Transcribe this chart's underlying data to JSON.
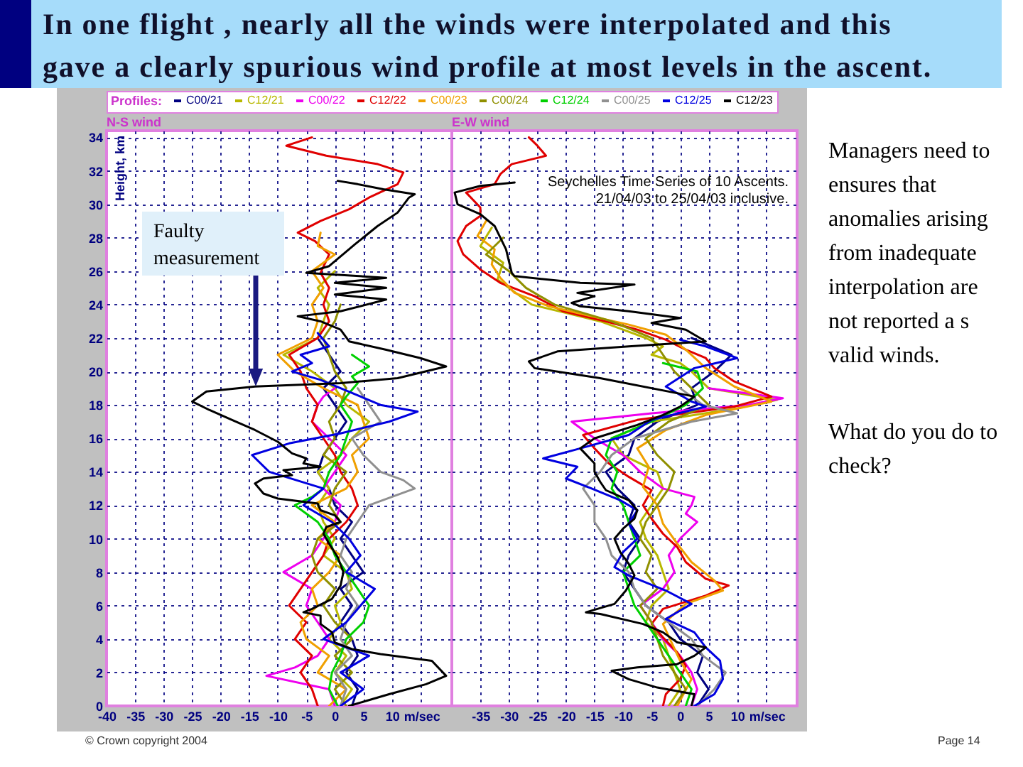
{
  "chart_data": [
    {
      "type": "line",
      "title": "N-S wind",
      "xlabel": "m/sec",
      "ylabel": "Height, km",
      "legend": "top",
      "legend_title": "Profiles:",
      "grid": true,
      "xlim": [
        -40,
        20.5
      ],
      "ylim": [
        0,
        34.4
      ],
      "xticks": [
        -40,
        -35,
        -30,
        -25,
        -20,
        -15,
        -10,
        -5,
        0,
        5,
        10,
        {
          "value": 15,
          "label": null
        }
      ],
      "yticks": [
        0,
        2,
        4,
        6,
        8,
        10,
        12,
        14,
        16,
        18,
        20,
        22,
        24,
        26,
        28,
        30,
        32,
        34
      ],
      "series": [
        {
          "name": "C00/21",
          "color": "#000080",
          "x": [
            3,
            4,
            2,
            4,
            3,
            1,
            3,
            1,
            5,
            3,
            1,
            3,
            0,
            -1,
            -3,
            -2,
            0,
            2,
            0,
            -2,
            1,
            -1,
            -3
          ],
          "values": [
            0,
            1,
            2,
            3,
            4,
            5,
            6,
            7,
            8,
            9,
            10,
            11,
            12,
            13,
            14,
            15,
            16,
            17,
            18,
            19,
            20,
            21,
            22
          ]
        },
        {
          "name": "C12/21",
          "color": "#b8b800",
          "x": [
            1,
            3,
            0,
            2,
            -1,
            1,
            0,
            3,
            2,
            -2,
            0,
            -2,
            -3,
            -1,
            -3,
            1,
            3,
            6,
            2,
            0,
            -4,
            -9,
            -3,
            -2,
            -1,
            -3,
            0
          ],
          "values": [
            0,
            1,
            2,
            3,
            4,
            5,
            6,
            7,
            8,
            9,
            10,
            11,
            12,
            13,
            14,
            15,
            16,
            17,
            18,
            19,
            20,
            21,
            22,
            23,
            24,
            25,
            26
          ]
        },
        {
          "name": "C00/22",
          "color": "#ee00ee",
          "x": [
            0,
            -1,
            -12,
            -7,
            -3,
            -1,
            -3,
            -5,
            -4,
            -9,
            -6,
            -4,
            -2,
            0,
            1,
            -2,
            0,
            2,
            -1,
            -4,
            -3,
            -2,
            0
          ],
          "values": [
            0,
            1,
            1.8,
            2.3,
            3,
            4,
            5,
            6,
            7,
            8,
            8.6,
            9,
            10,
            11,
            12,
            13,
            14,
            15,
            16,
            17,
            18,
            18.5,
            19
          ]
        },
        {
          "name": "C12/22",
          "color": "#e00000",
          "x": [
            -3,
            -4,
            -6,
            -4,
            -7,
            -5,
            -8,
            -6,
            -4,
            -2,
            -1,
            2,
            4,
            3,
            1,
            0,
            -2,
            -4,
            -3,
            -5,
            -6,
            -8,
            -3,
            -1,
            -2,
            -1,
            -2.5,
            -1,
            -3.5,
            -6.5,
            -2.5,
            2.5,
            6,
            11,
            12,
            7.5,
            -1.5,
            -8.5,
            -4
          ],
          "values": [
            0,
            1,
            2,
            3,
            4,
            5,
            6,
            7,
            8,
            9,
            10,
            11,
            12,
            13,
            14,
            15,
            16,
            17,
            18,
            19,
            20,
            21,
            22,
            23,
            24,
            25,
            25.9,
            27,
            27.8,
            28.3,
            29,
            29.7,
            30.4,
            31.2,
            31.9,
            32.4,
            32.9,
            33.5,
            34
          ]
        },
        {
          "name": "C00/23",
          "color": "#f0a000",
          "x": [
            -1,
            2,
            -3,
            -1,
            -5,
            -6,
            -3,
            -4,
            -1,
            1,
            -3,
            0,
            -4,
            2,
            4,
            3,
            6,
            5,
            4,
            -2,
            -7,
            -10,
            -4,
            -3,
            -4,
            -2,
            -4,
            0,
            -3,
            -2.5
          ],
          "values": [
            0,
            1,
            2,
            3,
            4,
            5,
            6,
            7,
            8,
            9,
            10,
            11,
            12,
            13,
            14,
            15,
            16,
            17,
            18,
            19,
            20,
            21,
            22,
            23,
            24,
            25,
            26,
            27,
            27.5,
            28.3
          ]
        },
        {
          "name": "C00/24",
          "color": "#909000",
          "x": [
            2,
            0,
            3,
            0,
            3,
            0,
            -2,
            0,
            -3,
            -4,
            -3,
            1,
            -1,
            0,
            2,
            -2,
            0,
            -1,
            1,
            2,
            0,
            -1,
            -2,
            0,
            1
          ],
          "values": [
            0,
            1,
            2,
            3,
            4,
            5,
            6,
            7,
            8,
            9,
            10,
            11,
            12,
            13,
            14,
            15,
            16,
            17,
            18,
            19,
            20,
            21,
            22,
            23,
            24
          ]
        },
        {
          "name": "C12/24",
          "color": "#00d000",
          "x": [
            0.5,
            -1,
            -0.5,
            1,
            2,
            5,
            6,
            4,
            2,
            0,
            -1,
            -3,
            -7,
            -4,
            -2,
            -1,
            1,
            2,
            3,
            1,
            2,
            4,
            3,
            6,
            3
          ],
          "values": [
            0,
            1,
            2,
            3,
            4,
            5,
            6,
            7,
            8,
            9,
            10,
            11,
            12,
            12.5,
            13,
            14,
            15,
            16,
            17,
            18,
            18.5,
            19.3,
            19.7,
            20.3,
            21
          ]
        },
        {
          "name": "C00/25",
          "color": "#909090",
          "x": [
            1,
            2,
            0,
            3,
            1,
            2,
            4,
            2,
            3,
            1,
            2,
            4,
            6,
            10,
            14,
            12,
            8,
            5,
            3,
            8,
            6,
            4
          ],
          "values": [
            0,
            1,
            2,
            3,
            4,
            5,
            6,
            7,
            8,
            9,
            10,
            11,
            12,
            12.5,
            13,
            13.5,
            14,
            15,
            16,
            17,
            18,
            19
          ]
        },
        {
          "name": "C12/25",
          "color": "#0000e0",
          "x": [
            1,
            5,
            1,
            6,
            -2,
            2,
            4.5,
            7,
            2,
            4.5,
            2.5,
            -0.5,
            -5.5,
            -2,
            -11.5,
            -14.5,
            -8,
            1,
            9.5,
            14.5,
            8,
            -2.5,
            -7.5,
            -4,
            -6,
            -1,
            -3
          ],
          "values": [
            0,
            1,
            2,
            3,
            4,
            5,
            6,
            7,
            8,
            9,
            10,
            11,
            12,
            13,
            14,
            15,
            15.7,
            16.3,
            17,
            17.6,
            18,
            19.5,
            20,
            20.5,
            21,
            21.5,
            22.3
          ]
        },
        {
          "name": "C12/23",
          "color": "#000000",
          "x": [
            2.5,
            9.5,
            16,
            19.5,
            17,
            8,
            3,
            0,
            -0.5,
            -2.5,
            -2.5,
            -5.5,
            -4,
            -0.5,
            1,
            1.5,
            0.5,
            -1,
            -2,
            -1.5,
            1,
            0,
            -2.5,
            -3,
            -10,
            -12.5,
            -14,
            -12.5,
            -7.5,
            -9,
            -2.5,
            -5.5,
            -5,
            -7.5,
            -10,
            -14,
            -18,
            -22,
            -25,
            -22.5,
            -14,
            1,
            11,
            19.5,
            15,
            9,
            2.5,
            1,
            -2.5,
            -6.5,
            1,
            9,
            0,
            9,
            0,
            9,
            -5,
            -1,
            3.5,
            7.5,
            11,
            13,
            14,
            8.5,
            4,
            0.5
          ],
          "values": [
            0,
            0.7,
            1.3,
            1.8,
            2.7,
            3.1,
            3.4,
            3.8,
            4.4,
            4.9,
            5.4,
            5.6,
            5.8,
            6.4,
            7.2,
            8,
            8.9,
            9.7,
            10.3,
            10.7,
            11,
            11.4,
            11.7,
            12.1,
            12.4,
            12.7,
            13.3,
            13.6,
            13.8,
            14.1,
            14.3,
            14.5,
            14.8,
            15.1,
            15.8,
            16.5,
            17.1,
            17.7,
            18.2,
            18.8,
            19.1,
            19.3,
            19.6,
            20.3,
            20.8,
            21.3,
            21.8,
            22.5,
            23,
            23.3,
            23.6,
            24.3,
            24.6,
            25,
            25.3,
            25.6,
            25.9,
            26.3,
            27.6,
            28.7,
            29.5,
            30.4,
            30.6,
            30.9,
            31.2,
            31.4
          ]
        }
      ],
      "annotations": [
        "In one flight , nearly all the winds were interpolated and this gave a clearly spurious wind profile at most levels in the ascent.",
        "Faulty measurement",
        "Managers need to ensures that anomalies arising from inadequate interpolation are not reported a s valid winds.",
        "What do you do to check?",
        "© Crown copyright 2004",
        "Page 14"
      ]
    },
    {
      "type": "line",
      "title": "E-W wind",
      "xlabel": "m/sec",
      "legend": "top",
      "grid": true,
      "tick_labels": "x",
      "xlim": [
        -40,
        20.5
      ],
      "ylim": [
        0,
        34.4
      ],
      "xticks": [
        -35,
        -30,
        -25,
        -20,
        -15,
        -10,
        -5,
        0,
        5,
        10,
        {
          "value": 15,
          "label": null
        }
      ],
      "yticks": [
        0,
        2,
        4,
        6,
        8,
        10,
        12,
        14,
        16,
        18,
        20,
        22,
        24,
        26,
        28,
        30,
        32,
        34
      ],
      "series": [
        {
          "name": "C00/21",
          "color": "#000080",
          "x": [
            3,
            5,
            3,
            4,
            0,
            -2,
            -6,
            -8,
            -10,
            -9,
            -7,
            -9,
            -8,
            -11,
            -13,
            -9,
            -8,
            -4,
            3,
            2,
            6,
            9,
            2
          ],
          "values": [
            0,
            1,
            2,
            3,
            4,
            5,
            6,
            7,
            8,
            9,
            10,
            11,
            12,
            13,
            14,
            15,
            16,
            17,
            18,
            19,
            20,
            21,
            22
          ]
        },
        {
          "name": "C12/21",
          "color": "#b8b800",
          "x": [
            -2,
            0,
            -1,
            -2,
            -3,
            -6,
            -5,
            -2,
            -3,
            -4,
            -6,
            -7,
            -5,
            -3,
            -4,
            -10,
            -12,
            -5,
            10,
            17,
            5,
            2,
            0,
            -5,
            -3,
            -6,
            -10,
            -14,
            -20,
            -26,
            -28,
            -32,
            -31,
            -35,
            -33
          ],
          "values": [
            0,
            1,
            2,
            3,
            4,
            5,
            6,
            7,
            8,
            9,
            10,
            11,
            12,
            13,
            14,
            15,
            16,
            17,
            17.8,
            18.3,
            19,
            20,
            20.5,
            21,
            21.5,
            22,
            22.5,
            23,
            23.5,
            24,
            24.5,
            25.5,
            26.5,
            27.5,
            28.6
          ]
        },
        {
          "name": "C00/22",
          "color": "#ee00ee",
          "x": [
            2,
            3,
            2,
            0,
            -3,
            -5,
            -7,
            -3,
            -1,
            -2,
            0,
            3,
            1,
            2,
            2.5,
            -3,
            -7,
            -10,
            -15,
            -19,
            -5,
            12,
            18,
            5
          ],
          "values": [
            0,
            1,
            2,
            3,
            4,
            5,
            6,
            7,
            8,
            9,
            10,
            11,
            11.5,
            12,
            12.5,
            13,
            14,
            15,
            16,
            17,
            17.5,
            18,
            18.4,
            19
          ]
        },
        {
          "name": "C12/22",
          "color": "#e00000",
          "x": [
            -3,
            -2.5,
            0,
            1,
            -0.5,
            -3,
            -5,
            -3,
            4.5,
            8.5,
            4.5,
            1,
            -0.5,
            -3,
            -5,
            -6.5,
            -5,
            -9,
            -12.5,
            -15,
            -17,
            -7.5,
            9.5,
            16,
            9.5,
            6,
            4.5,
            1,
            -2.5,
            -7.5,
            -13,
            -20.5,
            -25.5,
            -31.5,
            -35,
            -38,
            -39,
            -37.5,
            -35,
            -35,
            -37.5,
            -32.5,
            -31.5,
            -29.5,
            -23.5,
            -25,
            -26.5
          ],
          "values": [
            0,
            0.7,
            1.6,
            2.4,
            3.2,
            4.1,
            4.9,
            5.8,
            6.6,
            7.2,
            7.6,
            8.6,
            9.5,
            10.3,
            11.2,
            12,
            12.9,
            13.7,
            14.5,
            15.4,
            16.2,
            17.1,
            17.9,
            18.5,
            19.4,
            20.2,
            20.8,
            21.3,
            21.9,
            22.5,
            23,
            23.6,
            24.5,
            25.3,
            26.1,
            27,
            27.8,
            28.7,
            29.3,
            29.8,
            30.7,
            31.2,
            31.8,
            32.4,
            32.9,
            33.5,
            34
          ]
        },
        {
          "name": "C00/23",
          "color": "#f0a000",
          "x": [
            -0.5,
            2,
            0,
            -1.5,
            -3,
            1,
            7.5,
            6,
            2,
            -0.5,
            -3,
            -4,
            -6.5,
            -5.5,
            -7.5,
            -2.5,
            4.5,
            16,
            9.5,
            4.5,
            1,
            -2.5,
            -9,
            -15.5,
            -23,
            -29,
            -31.5,
            -33,
            -32.5,
            -35.5,
            -34
          ],
          "values": [
            0,
            1.6,
            2.7,
            3.8,
            4.9,
            6.1,
            6.9,
            7.5,
            8.6,
            9.7,
            10.9,
            12,
            13.1,
            14.3,
            15.4,
            16.5,
            17.4,
            18.2,
            19.1,
            20.2,
            21.3,
            22.2,
            22.8,
            23.3,
            23.9,
            24.7,
            25.6,
            26.4,
            27.3,
            28.1,
            29
          ]
        },
        {
          "name": "C00/24",
          "color": "#909000",
          "x": [
            -1,
            1,
            -1,
            -3,
            -4,
            -5,
            -7,
            -4,
            -6,
            -5,
            -7,
            -6,
            -4,
            -2,
            -1,
            -4,
            -6,
            -2,
            5,
            2,
            -1,
            -3,
            -5,
            -12,
            -22,
            -27,
            -30,
            -34,
            -31
          ],
          "values": [
            0,
            1,
            2,
            3,
            4,
            5,
            6,
            7,
            8,
            9,
            10,
            11,
            12,
            13,
            14,
            15,
            16,
            17,
            18,
            19,
            20,
            21,
            22,
            23,
            24,
            25,
            26,
            27,
            28
          ]
        },
        {
          "name": "C12/24",
          "color": "#00d000",
          "x": [
            1,
            2,
            0,
            -2,
            -4,
            -6,
            -8,
            -9,
            -10,
            -7,
            -8,
            -9,
            -10,
            -12,
            -11,
            -13,
            -12,
            -5,
            1,
            4,
            3,
            -3
          ],
          "values": [
            0,
            1,
            2,
            3,
            4,
            5,
            6,
            7,
            8,
            9,
            10,
            11,
            12,
            13,
            14,
            15,
            16,
            17,
            18,
            19,
            20,
            20.5
          ]
        },
        {
          "name": "C00/25",
          "color": "#909090",
          "x": [
            3,
            6,
            8,
            4,
            2,
            -2,
            -6,
            -8,
            -9,
            -12,
            -13,
            -15,
            -15,
            -17,
            -14,
            -12,
            -8,
            2,
            10,
            4,
            0
          ],
          "values": [
            0,
            1,
            2,
            3,
            4,
            5,
            6,
            7,
            8,
            9,
            10,
            11,
            12,
            13,
            14,
            15,
            16,
            17,
            17.5,
            18,
            19
          ]
        },
        {
          "name": "C12/25",
          "color": "#0000e0",
          "x": [
            2.5,
            6,
            7.5,
            7,
            4.5,
            2.5,
            -2.5,
            2,
            -2.5,
            -9,
            -11.5,
            -10,
            -7.5,
            -9,
            -7.5,
            -10.5,
            -15.5,
            -20,
            -18,
            -24,
            -17.5,
            -9,
            -5,
            4.5,
            2,
            -2.5,
            2.5,
            10,
            4.5,
            0
          ],
          "values": [
            0,
            0.7,
            1.6,
            2.7,
            3.5,
            4.4,
            5.2,
            6.1,
            6.9,
            7.8,
            8.3,
            9.2,
            10,
            10.9,
            11.7,
            12.3,
            13,
            13.6,
            14.3,
            14.8,
            15.4,
            16.2,
            17.1,
            17.9,
            18.2,
            19.1,
            20.2,
            20.8,
            21.5,
            21.9
          ]
        },
        {
          "name": "C12/23",
          "color": "#000000",
          "x": [
            2,
            2.5,
            -4,
            -9,
            -12,
            -7.5,
            -0.5,
            2.5,
            4.5,
            -0.5,
            -3,
            -6.5,
            -14,
            -16.5,
            -11.5,
            -9.5,
            -8,
            -9,
            -10.5,
            -11.5,
            -10,
            -8,
            -7.5,
            -9,
            -13,
            -14,
            -15,
            -15,
            -17.5,
            -15,
            -7.5,
            -3,
            0,
            2.5,
            -14,
            -25.5,
            -26.5,
            -21.5,
            -9,
            4.5,
            1,
            -5,
            0,
            -9,
            -17.5,
            -19,
            -15,
            -18,
            -8,
            -17.5,
            -29,
            -29.5,
            -30.5,
            -32.5,
            -35,
            -39,
            -39.5,
            -35,
            -29
          ],
          "values": [
            0,
            0.7,
            1.1,
            1.6,
            2.1,
            2.3,
            2.5,
            3,
            3.5,
            3.8,
            4.4,
            4.9,
            5.5,
            5.6,
            6.1,
            6.9,
            7.8,
            8.5,
            9.2,
            10,
            10.6,
            11.2,
            11.7,
            12.3,
            12.9,
            13.4,
            14,
            14.5,
            15.4,
            16,
            16.8,
            17.4,
            17.9,
            18.5,
            19.6,
            20.2,
            20.6,
            21.2,
            21.5,
            21.8,
            22.5,
            22.9,
            23.2,
            23.6,
            23.9,
            24.1,
            24.5,
            24.7,
            25.2,
            25.3,
            25.7,
            25.9,
            27.3,
            28.7,
            29.4,
            30,
            30.7,
            31.1,
            31.3
          ]
        }
      ],
      "annotations": [
        "Seychelles Time Series of 10 Ascents.",
        "21/04/03 to 25/04/03 inclusive."
      ]
    }
  ]
}
